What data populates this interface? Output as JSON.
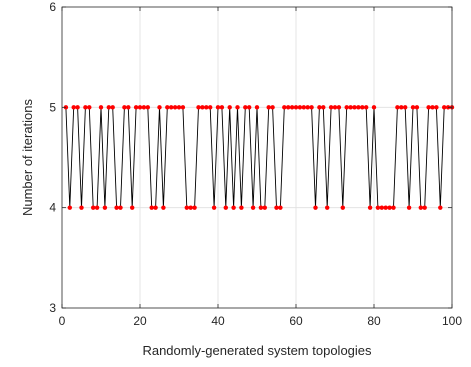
{
  "chart_data": {
    "type": "line",
    "title": "",
    "xlabel": "Randomly-generated system topologies",
    "ylabel": "Number of iterations",
    "xlim": [
      0,
      100
    ],
    "ylim": [
      3,
      6
    ],
    "xticks": [
      0,
      20,
      40,
      60,
      80,
      100
    ],
    "yticks": [
      3,
      4,
      5,
      6
    ],
    "grid": true,
    "legend": "none",
    "line_color": "#000000",
    "marker_color": "#ff0000",
    "series": [
      {
        "x": [
          1,
          2,
          3,
          4,
          5,
          6,
          7,
          8,
          9,
          10,
          11,
          12,
          13,
          14,
          15,
          16,
          17,
          18,
          19,
          20,
          21,
          22,
          23,
          24,
          25,
          26,
          27,
          28,
          29,
          30,
          31,
          32,
          33,
          34,
          35,
          36,
          37,
          38,
          39,
          40,
          41,
          42,
          43,
          44,
          45,
          46,
          47,
          48,
          49,
          50,
          51,
          52,
          53,
          54,
          55,
          56,
          57,
          58,
          59,
          60,
          61,
          62,
          63,
          64,
          65,
          66,
          67,
          68,
          69,
          70,
          71,
          72,
          73,
          74,
          75,
          76,
          77,
          78,
          79,
          80,
          81,
          82,
          83,
          84,
          85,
          86,
          87,
          88,
          89,
          90,
          91,
          92,
          93,
          94,
          95,
          96,
          97,
          98,
          99,
          100
        ],
        "values": [
          5,
          4,
          5,
          5,
          4,
          5,
          5,
          4,
          4,
          5,
          4,
          5,
          5,
          4,
          4,
          5,
          5,
          4,
          5,
          5,
          5,
          5,
          4,
          4,
          5,
          4,
          5,
          5,
          5,
          5,
          5,
          4,
          4,
          4,
          5,
          5,
          5,
          5,
          4,
          5,
          5,
          4,
          5,
          4,
          5,
          4,
          5,
          5,
          4,
          5,
          4,
          4,
          5,
          5,
          4,
          4,
          5,
          5,
          5,
          5,
          5,
          5,
          5,
          5,
          4,
          5,
          5,
          4,
          5,
          5,
          5,
          4,
          5,
          5,
          5,
          5,
          5,
          5,
          4,
          5,
          4,
          4,
          4,
          4,
          4,
          5,
          5,
          5,
          4,
          5,
          5,
          4,
          4,
          5,
          5,
          5,
          4,
          5,
          5,
          5
        ]
      }
    ]
  }
}
